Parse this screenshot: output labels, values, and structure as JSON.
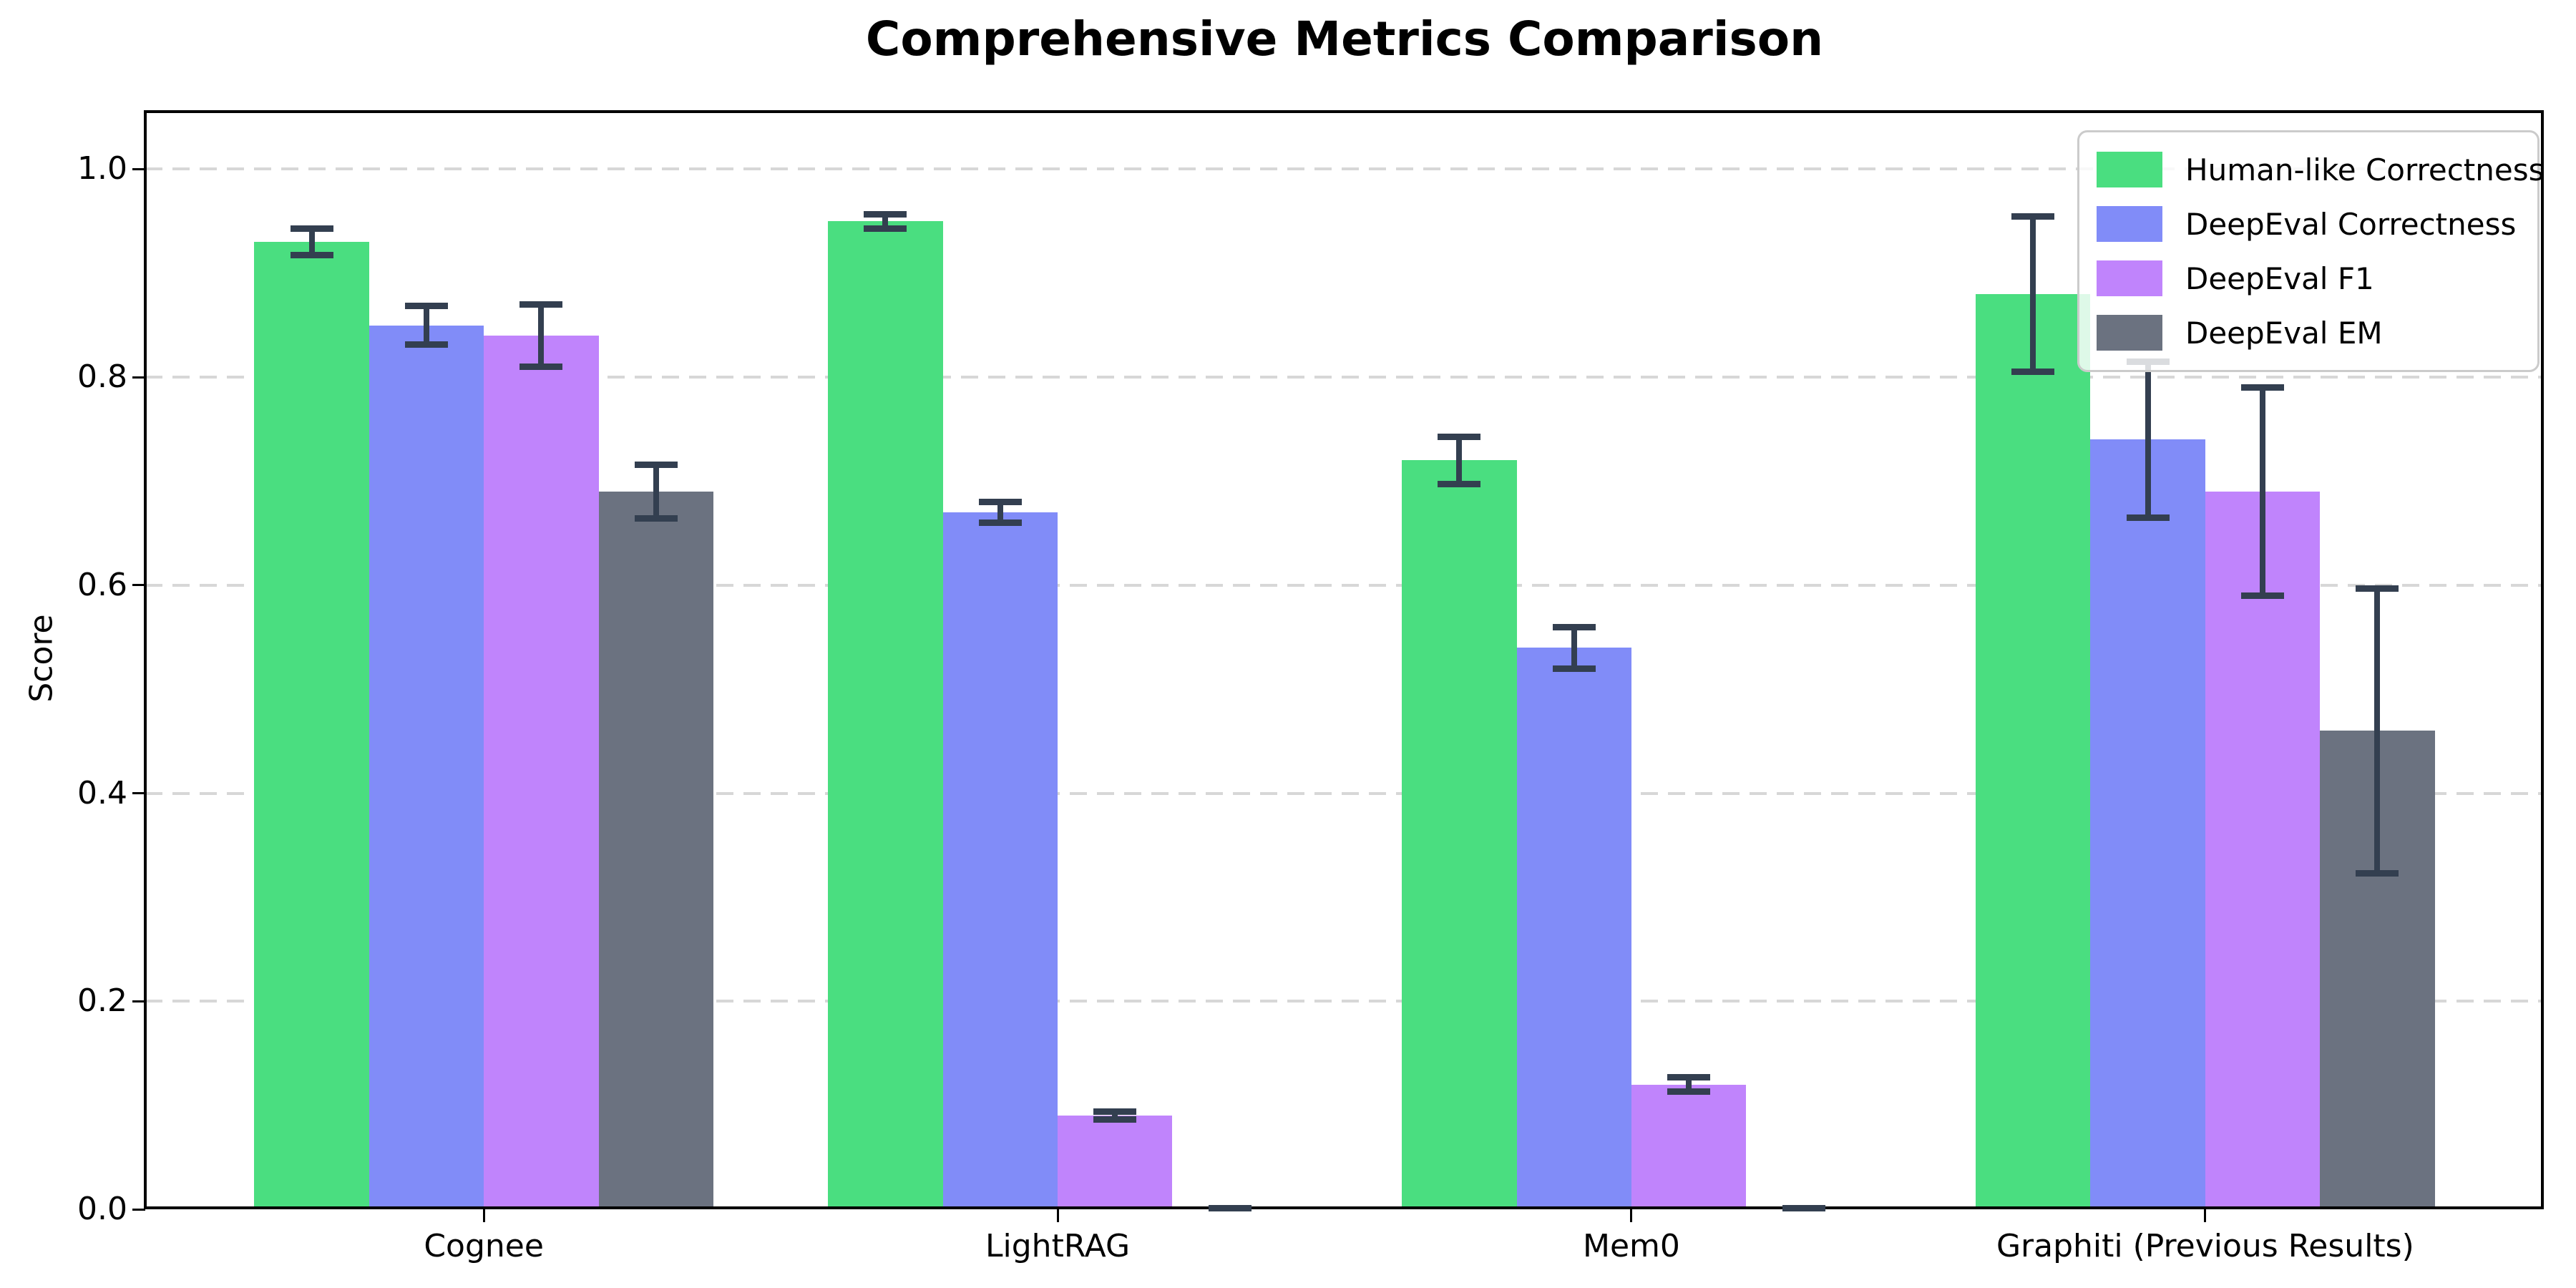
{
  "chart_data": {
    "type": "bar",
    "title": "Comprehensive Metrics Comparison",
    "xlabel": "",
    "ylabel": "Score",
    "categories": [
      "Cognee",
      "LightRAG",
      "Mem0",
      "Graphiti (Previous Results)"
    ],
    "series": [
      {
        "name": "Human-like Correctness",
        "color": "#4ade80",
        "values": [
          0.93,
          0.95,
          0.72,
          0.88
        ],
        "errors": [
          0.016,
          0.01,
          0.026,
          0.078
        ]
      },
      {
        "name": "DeepEval Correctness",
        "color": "#818cf8",
        "values": [
          0.85,
          0.67,
          0.54,
          0.74
        ],
        "errors": [
          0.022,
          0.013,
          0.023,
          0.078
        ]
      },
      {
        "name": "DeepEval F1",
        "color": "#c084fc",
        "values": [
          0.84,
          0.09,
          0.12,
          0.69
        ],
        "errors": [
          0.033,
          0.007,
          0.01,
          0.103
        ]
      },
      {
        "name": "DeepEval EM",
        "color": "#6b7280",
        "values": [
          0.69,
          0.0,
          0.0,
          0.46
        ],
        "errors": [
          0.029,
          0.004,
          0.004,
          0.14
        ]
      }
    ],
    "yticks": [
      "0.0",
      "0.2",
      "0.4",
      "0.6",
      "0.8",
      "1.0"
    ],
    "ylim": [
      0,
      1.054
    ],
    "grid": "horizontal-dashed",
    "grid_color": "#d7d7d7",
    "legend_position": "upper-right",
    "legend_border_color": "#cbcbcb",
    "error_bar_color": "#333f50",
    "axis_color": "#000000",
    "value_label_format": "0.00",
    "value_label_note": "zero-height bars have no value label"
  }
}
